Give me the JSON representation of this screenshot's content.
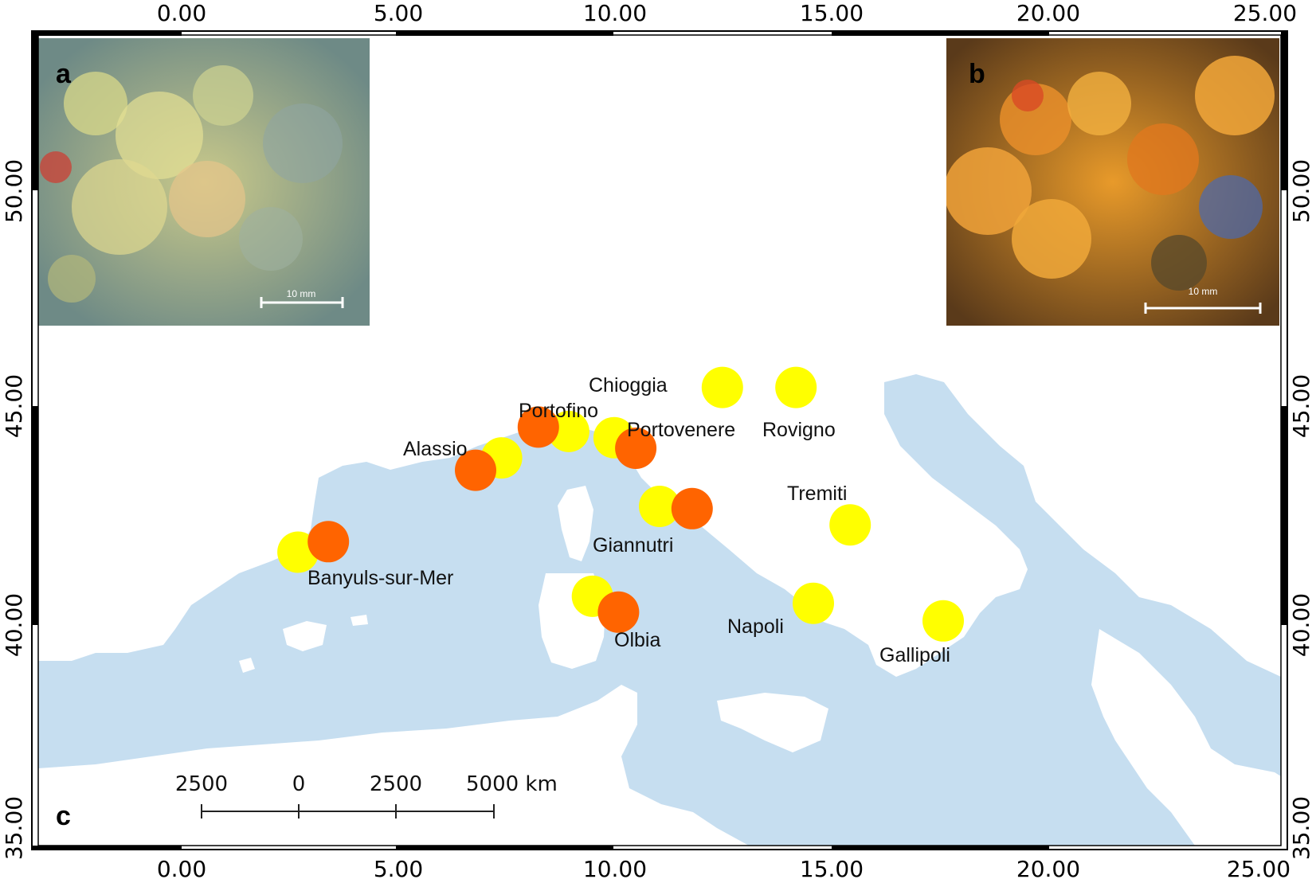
{
  "axes": {
    "x_ticks_top": [
      "0.00",
      "5.00",
      "10.00",
      "15.00",
      "20.00",
      "25.00"
    ],
    "x_ticks_bottom": [
      "0.00",
      "5.00",
      "10.00",
      "15.00",
      "20.00",
      "25.00"
    ],
    "y_ticks_left": [
      "50.00",
      "45.00",
      "40.00",
      "35.00"
    ],
    "y_ticks_right": [
      "50.00",
      "45.00",
      "40.00",
      "35.00"
    ],
    "x_range": [
      -3.5,
      25.2
    ],
    "y_range": [
      34.9,
      53.3
    ]
  },
  "panels": {
    "a": {
      "letter": "a",
      "scale_text": "10 mm"
    },
    "b": {
      "letter": "b",
      "scale_text": "10 mm"
    },
    "c": {
      "letter": "c"
    }
  },
  "scale_bar": {
    "labels": [
      "2500",
      "0",
      "2500",
      "5000 km"
    ]
  },
  "colors": {
    "sea": "#c6def0",
    "land": "#ffffff",
    "yellow_marker": "#ffff00",
    "orange_marker": "#ff6400"
  },
  "sites": [
    {
      "name": "Banyuls-sur-Mer",
      "markers": [
        {
          "color": "yellow",
          "lon": 2.5,
          "lat": 41.56
        },
        {
          "color": "orange",
          "lon": 3.2,
          "lat": 41.8
        }
      ]
    },
    {
      "name": "Alassio",
      "markers": [
        {
          "color": "yellow",
          "lon": 7.2,
          "lat": 43.7
        },
        {
          "color": "orange",
          "lon": 6.6,
          "lat": 43.42
        }
      ]
    },
    {
      "name": "Portofino",
      "markers": [
        {
          "color": "yellow",
          "lon": 8.75,
          "lat": 44.3
        },
        {
          "color": "orange",
          "lon": 8.05,
          "lat": 44.4
        }
      ]
    },
    {
      "name": "Portovenere",
      "markers": [
        {
          "color": "yellow",
          "lon": 9.8,
          "lat": 44.16
        },
        {
          "color": "orange",
          "lon": 10.3,
          "lat": 43.92
        }
      ]
    },
    {
      "name": "Giannutri",
      "markers": [
        {
          "color": "yellow",
          "lon": 10.85,
          "lat": 42.6
        },
        {
          "color": "orange",
          "lon": 11.6,
          "lat": 42.55
        }
      ]
    },
    {
      "name": "Olbia",
      "markers": [
        {
          "color": "yellow",
          "lon": 9.3,
          "lat": 40.56
        },
        {
          "color": "orange",
          "lon": 9.9,
          "lat": 40.2
        }
      ]
    },
    {
      "name": "Chioggia",
      "markers": [
        {
          "color": "yellow",
          "lon": 12.3,
          "lat": 45.3
        }
      ]
    },
    {
      "name": "Rovigno",
      "markers": [
        {
          "color": "yellow",
          "lon": 14.0,
          "lat": 45.3
        }
      ]
    },
    {
      "name": "Tremiti",
      "markers": [
        {
          "color": "yellow",
          "lon": 15.25,
          "lat": 42.18
        }
      ]
    },
    {
      "name": "Napoli",
      "markers": [
        {
          "color": "yellow",
          "lon": 14.4,
          "lat": 40.4
        }
      ]
    },
    {
      "name": "Gallipoli",
      "markers": [
        {
          "color": "yellow",
          "lon": 17.4,
          "lat": 40.0
        }
      ]
    }
  ]
}
